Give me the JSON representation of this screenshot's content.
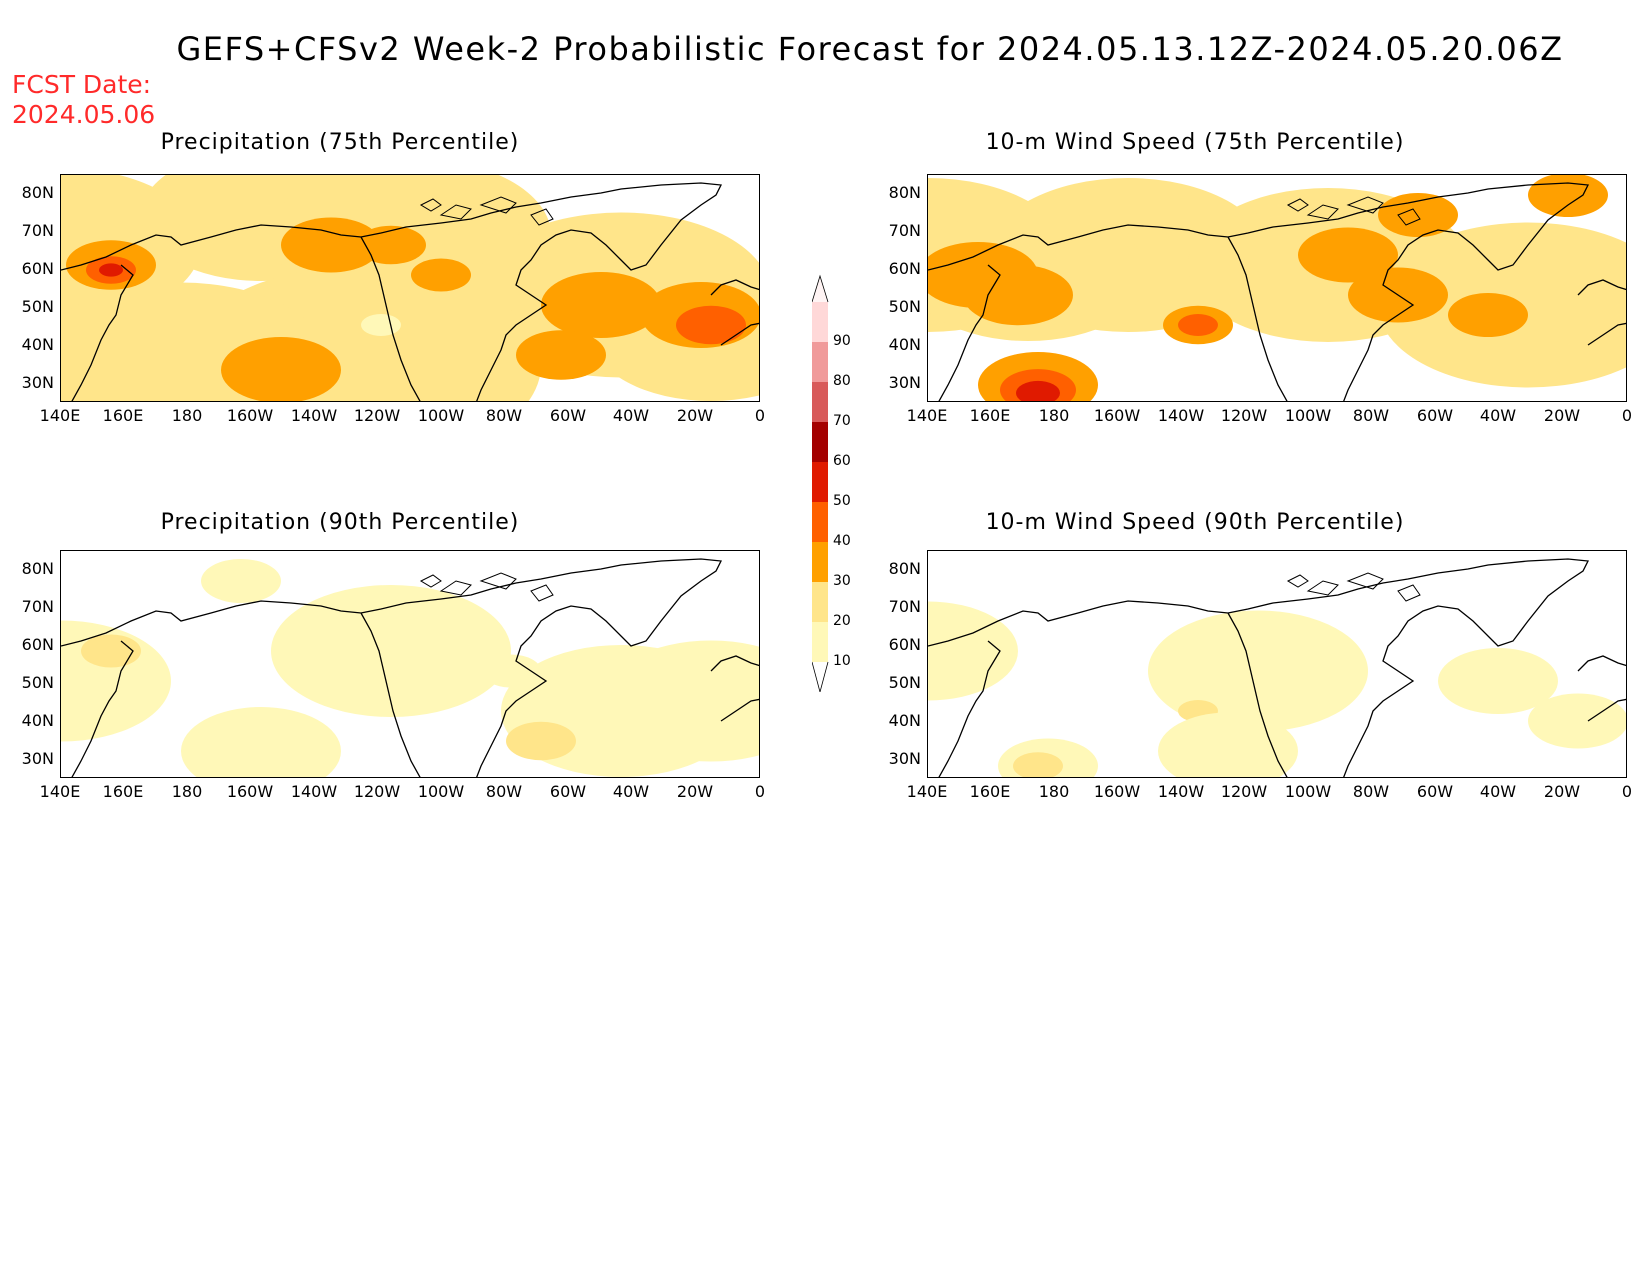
{
  "header": {
    "title": "GEFS+CFSv2 Week-2 Probabilistic Forecast for 2024.05.13.12Z-2024.05.20.06Z",
    "fcst_label": "FCST Date:",
    "fcst_date": "2024.05.06"
  },
  "panels": [
    {
      "title": "Precipitation (75th Percentile)",
      "intensity": "high",
      "variant": "precip"
    },
    {
      "title": "10-m Wind Speed (75th Percentile)",
      "intensity": "high",
      "variant": "wind"
    },
    {
      "title": "Precipitation (90th Percentile)",
      "intensity": "low",
      "variant": "precip"
    },
    {
      "title": "10-m Wind Speed (90th Percentile)",
      "intensity": "low",
      "variant": "wind"
    }
  ],
  "lat_labels": [
    "80N",
    "70N",
    "60N",
    "50N",
    "40N",
    "30N"
  ],
  "lon_labels": [
    "140E",
    "160E",
    "180",
    "160W",
    "140W",
    "120W",
    "100W",
    "80W",
    "60W",
    "40W",
    "20W",
    "0"
  ],
  "colorbar": {
    "levels": [
      "10",
      "20",
      "30",
      "40",
      "50",
      "60",
      "70",
      "80",
      "90"
    ],
    "colors": [
      "#fff8b8",
      "#ffe58a",
      "#ffa000",
      "#ff6000",
      "#e01a00",
      "#a40000",
      "#d85a5a",
      "#f09a9a",
      "#ffd8d8"
    ]
  }
}
